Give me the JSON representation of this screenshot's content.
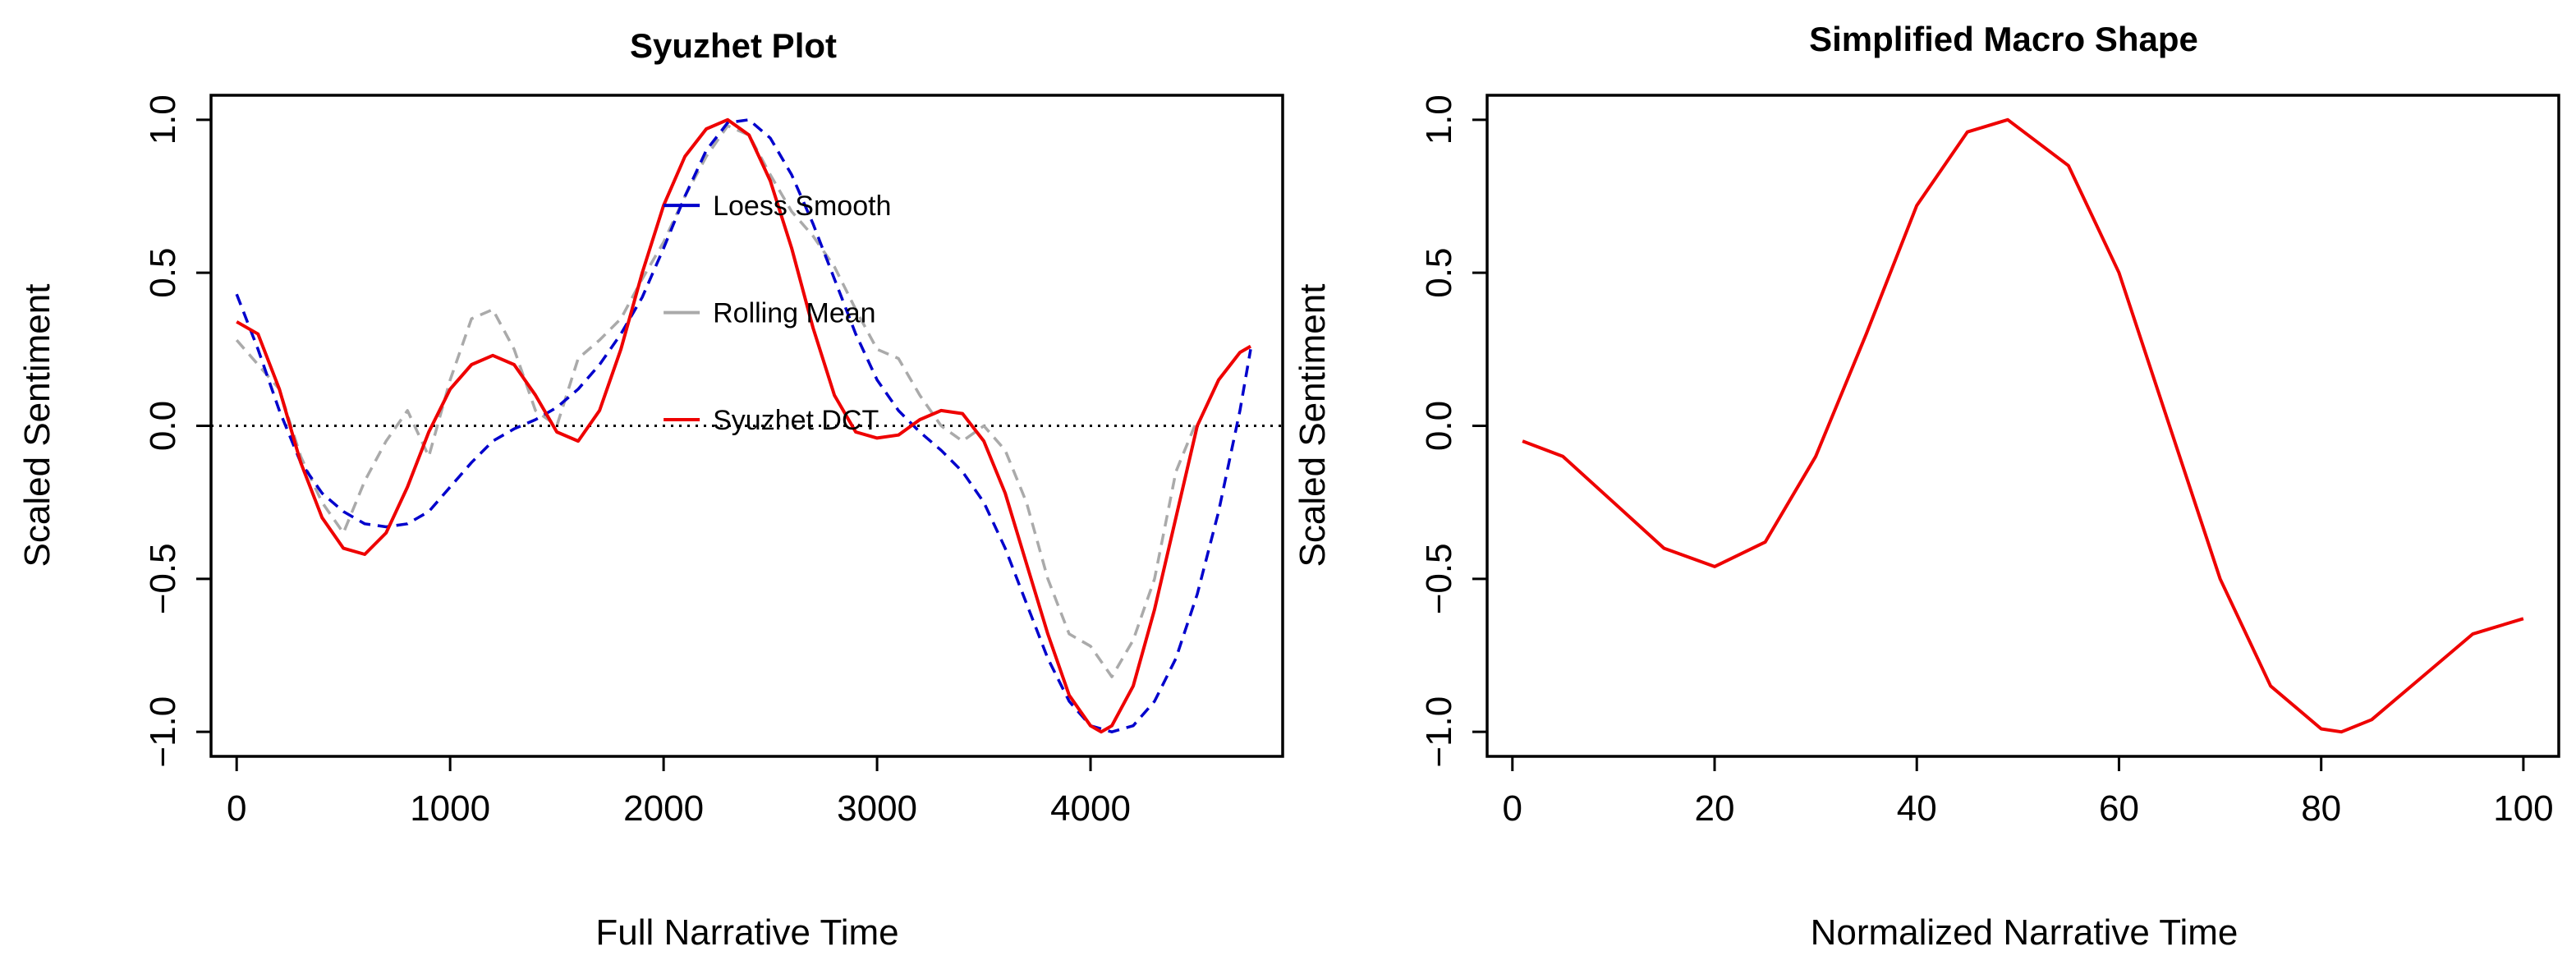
{
  "chart_data": [
    {
      "type": "line",
      "title": "Syuzhet Plot",
      "xlabel": "Full Narrative Time",
      "ylabel": "Scaled Sentiment",
      "xlim": [
        -120,
        4900
      ],
      "ylim": [
        -1.08,
        1.08
      ],
      "x_ticks": [
        0,
        1000,
        2000,
        3000,
        4000
      ],
      "x_tick_labels": [
        "0",
        "1000",
        "2000",
        "3000",
        "4000"
      ],
      "y_ticks": [
        -1.0,
        -0.5,
        0.0,
        0.5,
        1.0
      ],
      "y_tick_labels": [
        "−1.0",
        "−0.5",
        "0.0",
        "0.5",
        "1.0"
      ],
      "reference_line": {
        "y": 0,
        "style": "dotted",
        "color": "#000000"
      },
      "legend": {
        "placement": "top-center",
        "entries": [
          {
            "label": "Loess Smooth",
            "color": "#0000cc"
          },
          {
            "label": "Rolling Mean",
            "color": "#aaaaaa"
          },
          {
            "label": "Syuzhet DCT",
            "color": "#ee0000"
          }
        ]
      },
      "series": [
        {
          "name": "Rolling Mean",
          "color": "#aaaaaa",
          "style": "dashed",
          "x": [
            0,
            100,
            200,
            300,
            400,
            500,
            600,
            700,
            800,
            900,
            1000,
            1100,
            1200,
            1300,
            1400,
            1500,
            1600,
            1700,
            1800,
            1900,
            2000,
            2100,
            2200,
            2300,
            2400,
            2500,
            2600,
            2700,
            2800,
            2900,
            3000,
            3100,
            3200,
            3300,
            3400,
            3500,
            3600,
            3700,
            3800,
            3900,
            4000,
            4100,
            4200,
            4300,
            4400,
            4500
          ],
          "y": [
            0.28,
            0.2,
            0.12,
            -0.1,
            -0.25,
            -0.35,
            -0.18,
            -0.05,
            0.05,
            -0.1,
            0.15,
            0.35,
            0.38,
            0.25,
            0.05,
            0.0,
            0.22,
            0.28,
            0.35,
            0.48,
            0.6,
            0.75,
            0.88,
            0.98,
            0.95,
            0.82,
            0.7,
            0.62,
            0.52,
            0.38,
            0.25,
            0.22,
            0.1,
            0.0,
            -0.05,
            0.0,
            -0.08,
            -0.25,
            -0.5,
            -0.68,
            -0.72,
            -0.82,
            -0.7,
            -0.5,
            -0.15,
            0.02
          ]
        },
        {
          "name": "Loess Smooth",
          "color": "#0000cc",
          "style": "dashed",
          "x": [
            0,
            100,
            200,
            300,
            400,
            500,
            600,
            700,
            800,
            900,
            1000,
            1100,
            1200,
            1300,
            1400,
            1500,
            1600,
            1700,
            1800,
            1900,
            2000,
            2100,
            2200,
            2300,
            2400,
            2500,
            2600,
            2700,
            2800,
            2900,
            3000,
            3100,
            3200,
            3300,
            3400,
            3500,
            3600,
            3700,
            3800,
            3900,
            4000,
            4100,
            4200,
            4300,
            4400,
            4500,
            4600,
            4700,
            4750
          ],
          "y": [
            0.43,
            0.25,
            0.05,
            -0.12,
            -0.22,
            -0.28,
            -0.32,
            -0.33,
            -0.32,
            -0.28,
            -0.2,
            -0.12,
            -0.05,
            -0.01,
            0.02,
            0.06,
            0.12,
            0.2,
            0.3,
            0.42,
            0.58,
            0.75,
            0.9,
            0.99,
            1.0,
            0.94,
            0.82,
            0.66,
            0.48,
            0.3,
            0.15,
            0.05,
            -0.02,
            -0.08,
            -0.15,
            -0.25,
            -0.4,
            -0.58,
            -0.76,
            -0.9,
            -0.98,
            -1.0,
            -0.98,
            -0.9,
            -0.76,
            -0.55,
            -0.28,
            0.05,
            0.25
          ]
        },
        {
          "name": "Syuzhet DCT",
          "color": "#ee0000",
          "style": "solid",
          "x": [
            0,
            100,
            200,
            300,
            400,
            500,
            600,
            700,
            800,
            900,
            1000,
            1100,
            1200,
            1300,
            1400,
            1500,
            1600,
            1700,
            1800,
            1900,
            2000,
            2100,
            2200,
            2300,
            2400,
            2500,
            2600,
            2700,
            2800,
            2900,
            3000,
            3100,
            3200,
            3300,
            3400,
            3500,
            3600,
            3700,
            3800,
            3900,
            4000,
            4050,
            4100,
            4200,
            4300,
            4400,
            4500,
            4600,
            4700,
            4750
          ],
          "y": [
            0.34,
            0.3,
            0.12,
            -0.12,
            -0.3,
            -0.4,
            -0.42,
            -0.35,
            -0.2,
            -0.02,
            0.12,
            0.2,
            0.23,
            0.2,
            0.1,
            -0.02,
            -0.05,
            0.05,
            0.25,
            0.5,
            0.72,
            0.88,
            0.97,
            1.0,
            0.95,
            0.8,
            0.58,
            0.32,
            0.1,
            -0.02,
            -0.04,
            -0.03,
            0.02,
            0.05,
            0.04,
            -0.05,
            -0.22,
            -0.45,
            -0.68,
            -0.88,
            -0.98,
            -1.0,
            -0.98,
            -0.85,
            -0.6,
            -0.3,
            0.0,
            0.15,
            0.24,
            0.26
          ]
        }
      ]
    },
    {
      "type": "line",
      "title": "Simplified Macro Shape",
      "xlabel": "Normalized Narrative Time",
      "ylabel": "Scaled Sentiment",
      "xlim": [
        -2.5,
        103.5
      ],
      "ylim": [
        -1.08,
        1.08
      ],
      "x_ticks": [
        0,
        20,
        40,
        60,
        80,
        100
      ],
      "x_tick_labels": [
        "0",
        "20",
        "40",
        "60",
        "80",
        "100"
      ],
      "y_ticks": [
        -1.0,
        -0.5,
        0.0,
        0.5,
        1.0
      ],
      "y_tick_labels": [
        "−1.0",
        "−0.5",
        "0.0",
        "0.5",
        "1.0"
      ],
      "series": [
        {
          "name": "Simplified Macro Shape",
          "color": "#ee0000",
          "style": "solid",
          "x": [
            1,
            5,
            10,
            15,
            20,
            25,
            30,
            35,
            40,
            45,
            49,
            55,
            60,
            65,
            70,
            75,
            80,
            82,
            85,
            90,
            95,
            100
          ],
          "y": [
            -0.05,
            -0.1,
            -0.25,
            -0.4,
            -0.46,
            -0.38,
            -0.1,
            0.3,
            0.72,
            0.96,
            1.0,
            0.85,
            0.5,
            0.0,
            -0.5,
            -0.85,
            -0.99,
            -1.0,
            -0.96,
            -0.82,
            -0.68,
            -0.63
          ]
        }
      ]
    }
  ]
}
